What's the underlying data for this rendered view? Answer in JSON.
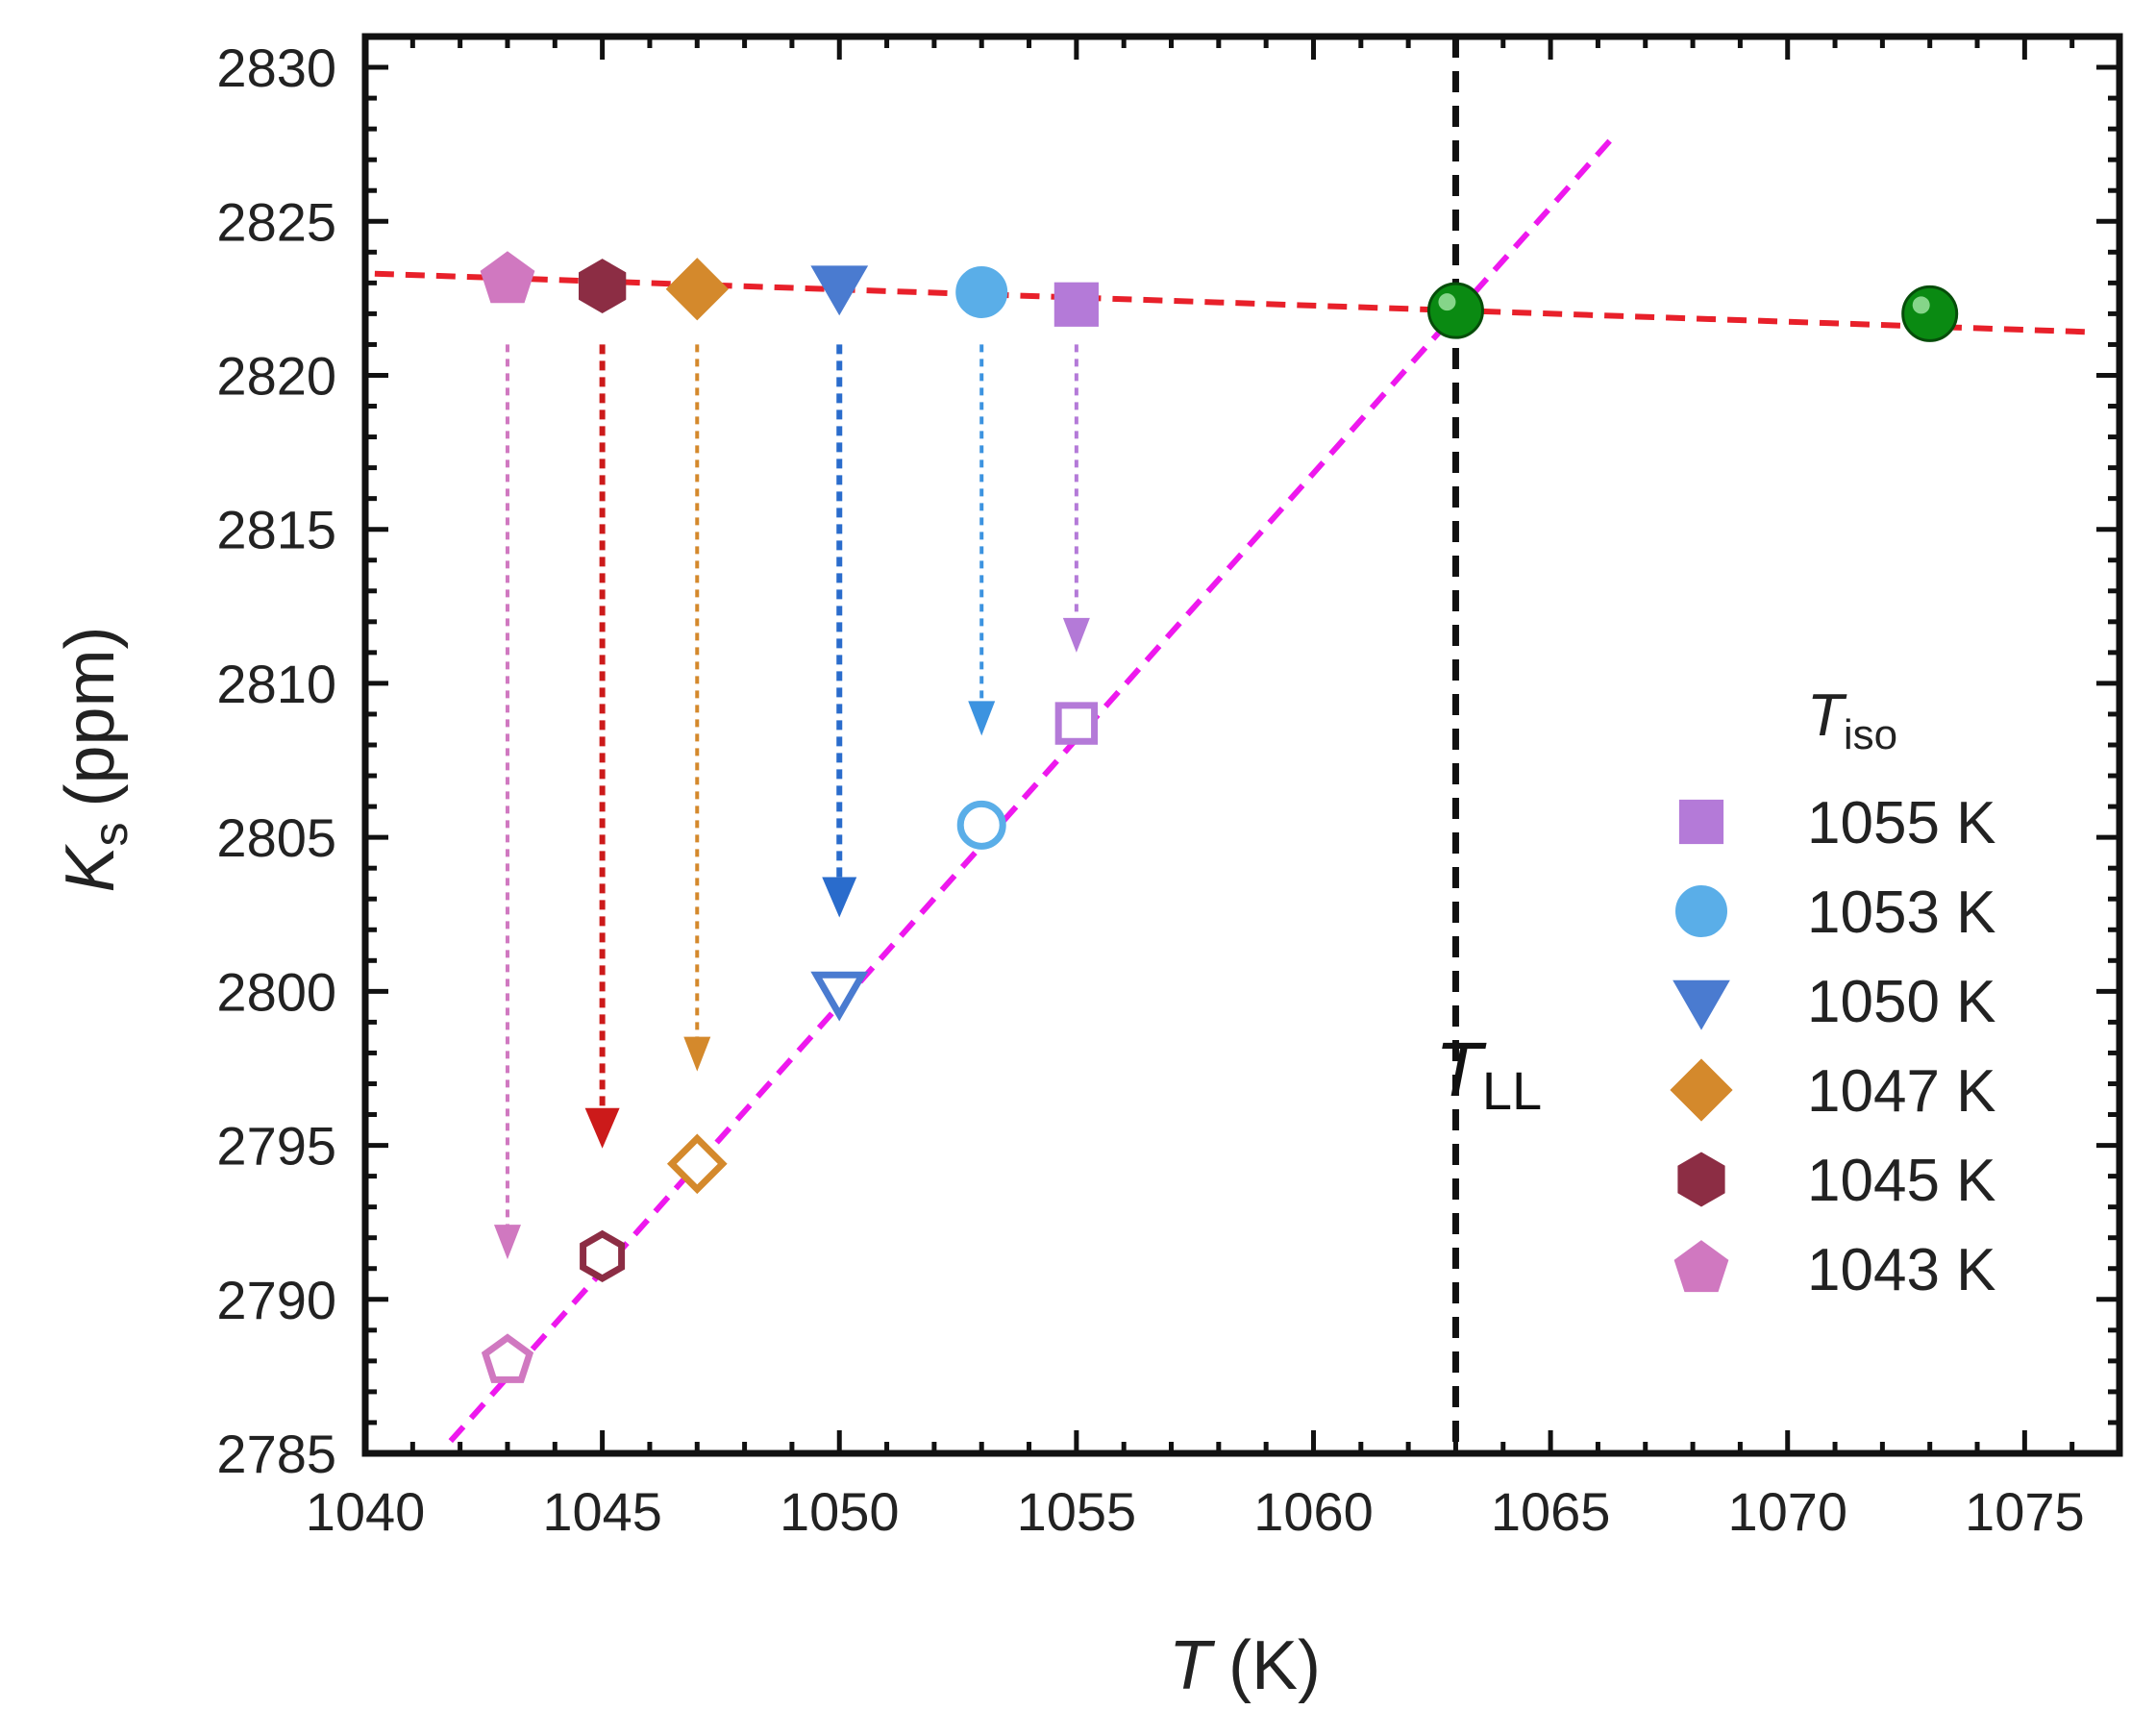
{
  "chart_data": {
    "type": "scatter",
    "xlabel": {
      "symbol": "T",
      "unit": "(K)"
    },
    "ylabel": {
      "symbol": "K",
      "subscript": "s",
      "unit": "(ppm)"
    },
    "xlim": [
      1040,
      1077
    ],
    "ylim": [
      2785,
      2831
    ],
    "xticks": [
      1040,
      1045,
      1050,
      1055,
      1060,
      1065,
      1070,
      1075
    ],
    "yticks": [
      2785,
      2790,
      2795,
      2800,
      2805,
      2810,
      2815,
      2820,
      2825,
      2830
    ],
    "legend_title": {
      "symbol": "T",
      "subscript": "iso"
    },
    "series": [
      {
        "name": "1055 K",
        "T_iso": 1055,
        "marker": "square",
        "color": "#b47ad8",
        "arrow_color": "#b47ad8",
        "filled_point": [
          1055,
          2822.3
        ],
        "open_point": [
          1055,
          2808.7
        ],
        "arrow_from": 2821.0,
        "arrow_to": 2811.0
      },
      {
        "name": "1053 K",
        "T_iso": 1053,
        "marker": "circle",
        "color": "#5aaee8",
        "arrow_color": "#3c93e0",
        "filled_point": [
          1053,
          2822.7
        ],
        "open_point": [
          1053,
          2805.4
        ],
        "arrow_from": 2821.0,
        "arrow_to": 2808.3
      },
      {
        "name": "1050 K",
        "T_iso": 1050,
        "marker": "triangle-down",
        "color": "#4a7bd0",
        "arrow_color": "#2a6ccc",
        "filled_point": [
          1050,
          2822.9
        ],
        "open_point": [
          1050,
          2800.0
        ],
        "arrow_from": 2821.0,
        "arrow_to": 2802.4
      },
      {
        "name": "1047 K",
        "T_iso": 1047,
        "marker": "diamond",
        "color": "#d4892c",
        "arrow_color": "#d4892c",
        "filled_point": [
          1047,
          2822.8
        ],
        "open_point": [
          1047,
          2794.4
        ],
        "arrow_from": 2821.0,
        "arrow_to": 2797.4
      },
      {
        "name": "1045 K",
        "T_iso": 1045,
        "marker": "hexagon",
        "color": "#8c2d44",
        "arrow_color": "#cc1a1a",
        "filled_point": [
          1045,
          2822.9
        ],
        "open_point": [
          1045,
          2791.4
        ],
        "arrow_from": 2821.0,
        "arrow_to": 2794.9
      },
      {
        "name": "1043 K",
        "T_iso": 1043,
        "marker": "pentagon",
        "color": "#d078c0",
        "arrow_color": "#d078c0",
        "filled_point": [
          1043,
          2823.1
        ],
        "open_point": [
          1043,
          2788.0
        ],
        "arrow_from": 2821.0,
        "arrow_to": 2791.3
      }
    ],
    "extra_points": {
      "name": "green",
      "color": "#0a8a12",
      "points": [
        [
          1063,
          2822.1
        ],
        [
          1073,
          2822.0
        ]
      ]
    },
    "fit_lines": [
      {
        "name": "liquid-fit",
        "color": "#e8202a",
        "x": [
          1040.2,
          1076.5
        ],
        "y": [
          2823.3,
          2821.4
        ]
      },
      {
        "name": "supercooled-fit",
        "color": "#ee18ee",
        "x": [
          1041.8,
          1066.3
        ],
        "y": [
          2785.4,
          2827.7
        ]
      }
    ],
    "vertical_line": {
      "x": 1063,
      "color": "#111111",
      "label": {
        "symbol": "T",
        "subscript": "LL"
      }
    }
  }
}
